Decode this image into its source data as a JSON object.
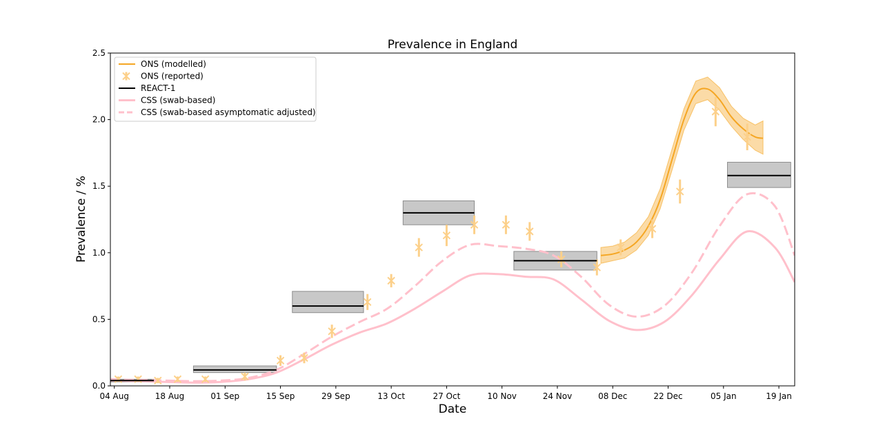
{
  "chart_data": {
    "type": "line",
    "title": "Prevalence in England",
    "xlabel": "Date",
    "ylabel": "Prevalence / %",
    "xlim": [
      "2020-08-03",
      "2021-01-23"
    ],
    "ylim": [
      0,
      2.5
    ],
    "x_ticks": [
      "04 Aug",
      "18 Aug",
      "01 Sep",
      "15 Sep",
      "29 Sep",
      "13 Oct",
      "27 Oct",
      "10 Nov",
      "24 Nov",
      "08 Dec",
      "22 Dec",
      "05 Jan",
      "19 Jan"
    ],
    "x_tick_dates": [
      "2020-08-04",
      "2020-08-18",
      "2020-09-01",
      "2020-09-15",
      "2020-09-29",
      "2020-10-13",
      "2020-10-27",
      "2020-11-10",
      "2020-11-24",
      "2020-12-08",
      "2020-12-22",
      "2021-01-05",
      "2021-01-19"
    ],
    "y_ticks": [
      "0.0",
      "0.5",
      "1.0",
      "1.5",
      "2.0",
      "2.5"
    ],
    "legend_position": "upper-left",
    "legend": [
      {
        "label": "ONS (modelled)",
        "color": "#f5a623",
        "style": "line"
      },
      {
        "label": "ONS (reported)",
        "color": "#fcd08a",
        "style": "marker"
      },
      {
        "label": "REACT-1",
        "color": "#000000",
        "style": "line"
      },
      {
        "label": "CSS (swab-based)",
        "color": "#ffc0cb",
        "style": "line"
      },
      {
        "label": "CSS (swab-based asymptomatic adjusted)",
        "color": "#ffc0cb",
        "style": "dashed"
      }
    ],
    "series": [
      {
        "name": "ONS (modelled)",
        "kind": "line_with_band",
        "color": "#f5a623",
        "x": [
          "2020-12-05",
          "2020-12-08",
          "2020-12-11",
          "2020-12-14",
          "2020-12-17",
          "2020-12-20",
          "2020-12-23",
          "2020-12-26",
          "2020-12-29",
          "2021-01-01",
          "2021-01-04",
          "2021-01-07",
          "2021-01-10",
          "2021-01-13",
          "2021-01-15"
        ],
        "y": [
          0.98,
          0.99,
          1.02,
          1.08,
          1.2,
          1.4,
          1.7,
          2.0,
          2.2,
          2.23,
          2.15,
          2.02,
          1.93,
          1.87,
          1.86
        ],
        "lower": [
          0.92,
          0.94,
          0.96,
          1.02,
          1.13,
          1.33,
          1.62,
          1.92,
          2.12,
          2.15,
          2.07,
          1.95,
          1.85,
          1.77,
          1.74
        ],
        "upper": [
          1.04,
          1.05,
          1.08,
          1.15,
          1.27,
          1.48,
          1.78,
          2.08,
          2.29,
          2.32,
          2.24,
          2.1,
          2.01,
          1.96,
          1.99
        ]
      },
      {
        "name": "ONS (reported)",
        "kind": "errorbar_points",
        "color": "#fcd08a",
        "x": [
          "2020-08-05",
          "2020-08-10",
          "2020-08-15",
          "2020-08-20",
          "2020-08-27",
          "2020-09-06",
          "2020-09-15",
          "2020-09-21",
          "2020-09-28",
          "2020-10-07",
          "2020-10-13",
          "2020-10-20",
          "2020-10-27",
          "2020-11-03",
          "2020-11-11",
          "2020-11-17",
          "2020-11-25",
          "2020-12-04",
          "2020-12-10",
          "2020-12-18",
          "2020-12-25",
          "2021-01-03",
          "2021-01-11"
        ],
        "y": [
          0.05,
          0.05,
          0.04,
          0.05,
          0.05,
          0.07,
          0.19,
          0.21,
          0.41,
          0.63,
          0.79,
          1.04,
          1.13,
          1.21,
          1.21,
          1.16,
          0.95,
          0.89,
          1.04,
          1.18,
          1.46,
          2.06,
          1.87
        ],
        "error": [
          0.02,
          0.02,
          0.02,
          0.02,
          0.02,
          0.03,
          0.04,
          0.04,
          0.05,
          0.06,
          0.05,
          0.07,
          0.08,
          0.07,
          0.07,
          0.07,
          0.06,
          0.06,
          0.06,
          0.07,
          0.09,
          0.11,
          0.1
        ]
      },
      {
        "name": "REACT-1",
        "kind": "box_segments",
        "color": "#000000",
        "segments": [
          {
            "x0": "2020-08-03",
            "x1": "2020-08-14",
            "y": 0.04,
            "lower": 0.03,
            "upper": 0.05
          },
          {
            "x0": "2020-08-24",
            "x1": "2020-09-14",
            "y": 0.12,
            "lower": 0.1,
            "upper": 0.15
          },
          {
            "x0": "2020-09-18",
            "x1": "2020-10-06",
            "y": 0.6,
            "lower": 0.55,
            "upper": 0.71
          },
          {
            "x0": "2020-10-16",
            "x1": "2020-11-03",
            "y": 1.3,
            "lower": 1.21,
            "upper": 1.39
          },
          {
            "x0": "2020-11-13",
            "x1": "2020-12-04",
            "y": 0.94,
            "lower": 0.87,
            "upper": 1.01
          },
          {
            "x0": "2021-01-06",
            "x1": "2021-01-22",
            "y": 1.58,
            "lower": 1.49,
            "upper": 1.68
          }
        ]
      },
      {
        "name": "CSS (swab-based)",
        "kind": "line",
        "color": "#ffc0cb",
        "x": [
          "2020-08-03",
          "2020-08-10",
          "2020-08-17",
          "2020-08-24",
          "2020-08-31",
          "2020-09-07",
          "2020-09-14",
          "2020-09-21",
          "2020-09-28",
          "2020-10-05",
          "2020-10-12",
          "2020-10-19",
          "2020-10-26",
          "2020-11-02",
          "2020-11-09",
          "2020-11-16",
          "2020-11-23",
          "2020-11-30",
          "2020-12-07",
          "2020-12-14",
          "2020-12-21",
          "2020-12-28",
          "2021-01-04",
          "2021-01-11",
          "2021-01-18",
          "2021-01-23"
        ],
        "y": [
          0.04,
          0.035,
          0.03,
          0.025,
          0.03,
          0.05,
          0.1,
          0.2,
          0.31,
          0.4,
          0.47,
          0.58,
          0.71,
          0.83,
          0.84,
          0.82,
          0.8,
          0.65,
          0.49,
          0.42,
          0.48,
          0.68,
          0.95,
          1.16,
          1.04,
          0.78
        ]
      },
      {
        "name": "CSS (swab-based asymptomatic adjusted)",
        "kind": "dashed_line",
        "color": "#ffc0cb",
        "x": [
          "2020-08-03",
          "2020-08-10",
          "2020-08-17",
          "2020-08-24",
          "2020-08-31",
          "2020-09-07",
          "2020-09-14",
          "2020-09-21",
          "2020-09-28",
          "2020-10-05",
          "2020-10-12",
          "2020-10-19",
          "2020-10-26",
          "2020-11-02",
          "2020-11-09",
          "2020-11-16",
          "2020-11-23",
          "2020-11-30",
          "2020-12-07",
          "2020-12-14",
          "2020-12-21",
          "2020-12-28",
          "2021-01-04",
          "2021-01-11",
          "2021-01-18",
          "2021-01-23"
        ],
        "y": [
          0.05,
          0.045,
          0.04,
          0.035,
          0.04,
          0.06,
          0.12,
          0.24,
          0.37,
          0.48,
          0.58,
          0.75,
          0.94,
          1.06,
          1.05,
          1.03,
          0.98,
          0.82,
          0.61,
          0.52,
          0.6,
          0.85,
          1.2,
          1.44,
          1.35,
          0.98
        ]
      }
    ]
  }
}
